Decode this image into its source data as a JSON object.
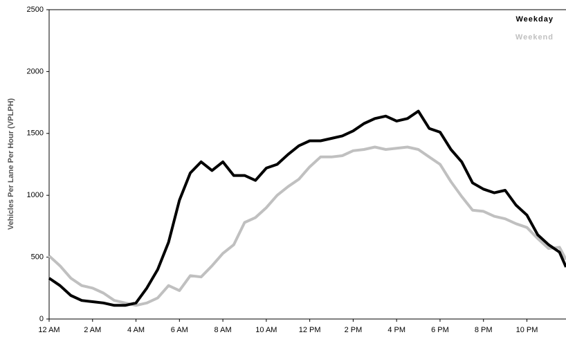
{
  "chart_data": {
    "type": "line",
    "y_label": "Vehicles Per Lane Per Hour (VPLPH)",
    "x": [
      0,
      0.5,
      1,
      1.5,
      2,
      2.5,
      3,
      3.5,
      4,
      4.5,
      5,
      5.5,
      6,
      6.5,
      7,
      7.5,
      8,
      8.5,
      9,
      9.5,
      10,
      10.5,
      11,
      11.5,
      12,
      12.5,
      13,
      13.5,
      14,
      14.5,
      15,
      15.5,
      16,
      16.5,
      17,
      17.5,
      18,
      18.5,
      19,
      19.5,
      20,
      20.5,
      21,
      21.5,
      22,
      22.5,
      23,
      23.5,
      23.8
    ],
    "series": [
      {
        "name": "Weekday",
        "color": "#000000",
        "values": [
          330,
          270,
          190,
          150,
          140,
          130,
          110,
          110,
          130,
          250,
          400,
          620,
          960,
          1180,
          1270,
          1200,
          1270,
          1160,
          1160,
          1120,
          1220,
          1250,
          1330,
          1400,
          1440,
          1440,
          1460,
          1480,
          1520,
          1580,
          1620,
          1640,
          1600,
          1620,
          1680,
          1540,
          1510,
          1370,
          1270,
          1100,
          1050,
          1020,
          1040,
          920,
          840,
          680,
          600,
          540,
          420
        ]
      },
      {
        "name": "Weekend",
        "color": "#c0c0c0",
        "values": [
          510,
          430,
          330,
          270,
          250,
          210,
          150,
          130,
          110,
          130,
          170,
          270,
          230,
          350,
          340,
          430,
          530,
          600,
          780,
          820,
          900,
          1000,
          1070,
          1130,
          1230,
          1310,
          1310,
          1320,
          1360,
          1370,
          1390,
          1370,
          1380,
          1390,
          1370,
          1310,
          1250,
          1110,
          990,
          880,
          870,
          830,
          810,
          770,
          740,
          650,
          570,
          580,
          480
        ]
      }
    ],
    "xlim": [
      0,
      23.8
    ],
    "xticks": [
      {
        "value": 0,
        "label": "12 AM"
      },
      {
        "value": 2,
        "label": "2 AM"
      },
      {
        "value": 4,
        "label": "4 AM"
      },
      {
        "value": 6,
        "label": "6 AM"
      },
      {
        "value": 8,
        "label": "8 AM"
      },
      {
        "value": 10,
        "label": "10 AM"
      },
      {
        "value": 12,
        "label": "12 PM"
      },
      {
        "value": 14,
        "label": "2 PM"
      },
      {
        "value": 16,
        "label": "4 PM"
      },
      {
        "value": 18,
        "label": "6 PM"
      },
      {
        "value": 20,
        "label": "8 PM"
      },
      {
        "value": 22,
        "label": "10 PM"
      }
    ],
    "ylim": [
      0,
      2500
    ],
    "yticks": [
      0,
      500,
      1000,
      1500,
      2000,
      2500
    ],
    "legend": "top-right",
    "grid": false
  }
}
